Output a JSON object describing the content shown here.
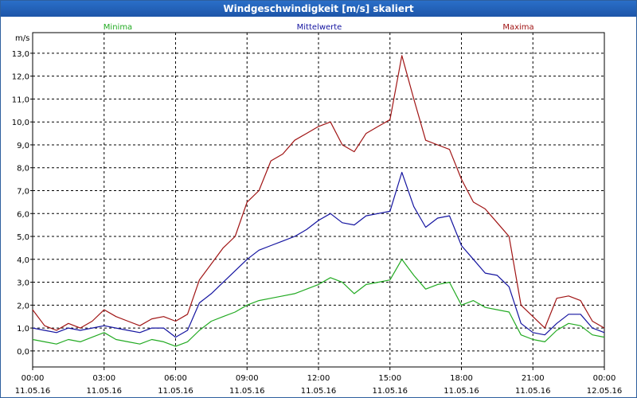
{
  "window": {
    "title": "Windgeschwindigkeit [m/s] skaliert"
  },
  "chart_data": {
    "type": "line",
    "ylabel": "m/s",
    "ylim": [
      -0.7,
      13.9
    ],
    "xlim_hours": [
      0,
      24
    ],
    "grid": true,
    "legend_placement": "top",
    "y_ticks": [
      "0,0",
      "1,0",
      "2,0",
      "3,0",
      "4,0",
      "5,0",
      "6,0",
      "7,0",
      "8,0",
      "9,0",
      "10,0",
      "11,0",
      "12,0",
      "13,0"
    ],
    "x_ticks": [
      {
        "time": "00:00",
        "date": "11.05.16"
      },
      {
        "time": "03:00",
        "date": "11.05.16"
      },
      {
        "time": "06:00",
        "date": "11.05.16"
      },
      {
        "time": "09:00",
        "date": "11.05.16"
      },
      {
        "time": "12:00",
        "date": "11.05.16"
      },
      {
        "time": "15:00",
        "date": "11.05.16"
      },
      {
        "time": "18:00",
        "date": "11.05.16"
      },
      {
        "time": "21:00",
        "date": "11.05.16"
      },
      {
        "time": "00:00",
        "date": "12.05.16"
      }
    ],
    "x_hours": [
      0,
      0.5,
      1,
      1.5,
      2,
      2.5,
      3,
      3.5,
      4,
      4.5,
      5,
      5.5,
      6,
      6.5,
      7,
      7.5,
      8,
      8.5,
      9,
      9.5,
      10,
      10.5,
      11,
      11.5,
      12,
      12.5,
      13,
      13.5,
      14,
      14.5,
      15,
      15.5,
      16,
      16.5,
      17,
      17.5,
      18,
      18.5,
      19,
      19.5,
      20,
      20.5,
      21,
      21.5,
      22,
      22.5,
      23,
      23.5,
      24
    ],
    "series": [
      {
        "name": "Minima",
        "color": "#22aa22",
        "values": [
          0.5,
          0.4,
          0.3,
          0.5,
          0.4,
          0.6,
          0.8,
          0.5,
          0.4,
          0.3,
          0.5,
          0.4,
          0.2,
          0.4,
          0.9,
          1.3,
          1.5,
          1.7,
          2.0,
          2.2,
          2.3,
          2.4,
          2.5,
          2.7,
          2.9,
          3.2,
          3.0,
          2.5,
          2.9,
          3.0,
          3.1,
          4.0,
          3.3,
          2.7,
          2.9,
          3.0,
          2.0,
          2.2,
          1.9,
          1.8,
          1.7,
          0.7,
          0.5,
          0.4,
          0.9,
          1.2,
          1.1,
          0.7,
          0.6
        ]
      },
      {
        "name": "Mittelwerte",
        "color": "#1414a0",
        "values": [
          1.0,
          0.9,
          0.8,
          1.0,
          0.9,
          1.0,
          1.1,
          1.0,
          0.9,
          0.8,
          1.0,
          1.0,
          0.6,
          0.9,
          2.1,
          2.5,
          3.0,
          3.5,
          4.0,
          4.4,
          4.6,
          4.8,
          5.0,
          5.3,
          5.7,
          6.0,
          5.6,
          5.5,
          5.9,
          6.0,
          6.1,
          7.8,
          6.3,
          5.4,
          5.8,
          5.9,
          4.6,
          4.0,
          3.4,
          3.3,
          2.8,
          1.2,
          0.8,
          0.7,
          1.2,
          1.6,
          1.6,
          1.0,
          0.8
        ]
      },
      {
        "name": "Maxima",
        "color": "#a01414",
        "values": [
          1.8,
          1.1,
          0.9,
          1.2,
          1.0,
          1.3,
          1.8,
          1.5,
          1.3,
          1.1,
          1.4,
          1.5,
          1.3,
          1.6,
          3.1,
          3.8,
          4.5,
          5.0,
          6.5,
          7.0,
          8.3,
          8.6,
          9.2,
          9.5,
          9.8,
          10.0,
          9.0,
          8.7,
          9.5,
          9.8,
          10.1,
          12.9,
          11.0,
          9.2,
          9.0,
          8.8,
          7.5,
          6.5,
          6.2,
          5.6,
          5.0,
          2.0,
          1.5,
          1.0,
          2.3,
          2.4,
          2.2,
          1.3,
          1.0
        ]
      }
    ]
  }
}
